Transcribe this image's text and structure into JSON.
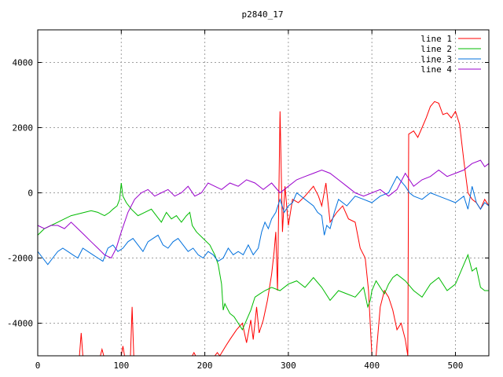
{
  "chart_data": {
    "type": "line",
    "title": "p2840_17",
    "xlabel": "",
    "ylabel": "",
    "xlim": [
      0,
      540
    ],
    "ylim": [
      -5000,
      5000
    ],
    "xticks": [
      0,
      100,
      200,
      300,
      400,
      500
    ],
    "yticks": [
      -4000,
      -2000,
      0,
      2000,
      4000
    ],
    "grid": true,
    "legend_position": "top-right",
    "series": [
      {
        "name": "line 1",
        "color": "#ff0000",
        "x": [
          50,
          52,
          54,
          75,
          77,
          79,
          100,
          102,
          104,
          111,
          113,
          115,
          185,
          187,
          189,
          212,
          215,
          218,
          225,
          230,
          238,
          245,
          250,
          255,
          258,
          262,
          265,
          270,
          275,
          280,
          283,
          285,
          287,
          290,
          293,
          296,
          300,
          305,
          312,
          320,
          330,
          336,
          340,
          345,
          350,
          358,
          365,
          372,
          380,
          386,
          392,
          396,
          400,
          405,
          410,
          415,
          420,
          425,
          430,
          435,
          440,
          443,
          444,
          450,
          455,
          460,
          465,
          470,
          475,
          480,
          485,
          490,
          495,
          500,
          505,
          510,
          515,
          520,
          525,
          530,
          535,
          540
        ],
        "y": [
          -5000,
          -4300,
          -5000,
          -5000,
          -4800,
          -5000,
          -5000,
          -4700,
          -5000,
          -5000,
          -3500,
          -5000,
          -5000,
          -4900,
          -5000,
          -5000,
          -4900,
          -5000,
          -4700,
          -4500,
          -4200,
          -4000,
          -4600,
          -3900,
          -4500,
          -3500,
          -4300,
          -3900,
          -3300,
          -2500,
          -1800,
          -1200,
          -3000,
          2500,
          -1200,
          200,
          -1000,
          -200,
          -300,
          -100,
          200,
          -100,
          -400,
          300,
          -900,
          -600,
          -400,
          -800,
          -900,
          -1700,
          -2000,
          -3000,
          -5000,
          -5000,
          -3500,
          -3000,
          -3200,
          -3600,
          -4200,
          -4000,
          -4500,
          -5000,
          1800,
          1900,
          1700,
          2000,
          2300,
          2650,
          2800,
          2750,
          2400,
          2450,
          2300,
          2500,
          2100,
          1000,
          0,
          -200,
          -300,
          -500,
          -200,
          -400
        ]
      },
      {
        "name": "line 2",
        "color": "#00bb00",
        "x": [
          0,
          8,
          16,
          24,
          32,
          40,
          48,
          56,
          64,
          72,
          80,
          86,
          90,
          95,
          98,
          100,
          102,
          106,
          112,
          120,
          128,
          136,
          142,
          148,
          154,
          160,
          166,
          172,
          178,
          182,
          185,
          190,
          198,
          206,
          212,
          216,
          220,
          222,
          224,
          226,
          230,
          235,
          240,
          245,
          250,
          255,
          260,
          266,
          272,
          280,
          290,
          300,
          310,
          320,
          330,
          340,
          350,
          360,
          370,
          380,
          390,
          395,
          398,
          400,
          405,
          410,
          415,
          420,
          425,
          430,
          440,
          450,
          460,
          470,
          480,
          490,
          500,
          510,
          515,
          520,
          525,
          530,
          535,
          540
        ],
        "y": [
          -1300,
          -1100,
          -1000,
          -900,
          -800,
          -700,
          -650,
          -600,
          -550,
          -600,
          -700,
          -600,
          -500,
          -400,
          -200,
          300,
          -100,
          -300,
          -500,
          -700,
          -600,
          -500,
          -700,
          -900,
          -600,
          -800,
          -700,
          -900,
          -700,
          -600,
          -1000,
          -1200,
          -1400,
          -1600,
          -1900,
          -2200,
          -2800,
          -3600,
          -3400,
          -3500,
          -3700,
          -3800,
          -4000,
          -4200,
          -3900,
          -3600,
          -3200,
          -3100,
          -3000,
          -2900,
          -3000,
          -2800,
          -2700,
          -2900,
          -2600,
          -2900,
          -3300,
          -3000,
          -3100,
          -3200,
          -2900,
          -3500,
          -3300,
          -3000,
          -2700,
          -2900,
          -3100,
          -2800,
          -2600,
          -2500,
          -2700,
          -3000,
          -3200,
          -2800,
          -2600,
          -3000,
          -2800,
          -2200,
          -1900,
          -2400,
          -2300,
          -2900,
          -3000,
          -3000
        ]
      },
      {
        "name": "line 3",
        "color": "#0070dd",
        "x": [
          0,
          6,
          12,
          18,
          24,
          30,
          36,
          42,
          48,
          54,
          60,
          66,
          72,
          78,
          84,
          90,
          96,
          102,
          108,
          114,
          120,
          126,
          132,
          138,
          144,
          150,
          156,
          162,
          168,
          174,
          180,
          186,
          192,
          198,
          204,
          210,
          216,
          222,
          228,
          234,
          240,
          246,
          252,
          258,
          264,
          268,
          272,
          276,
          280,
          285,
          290,
          295,
          300,
          305,
          310,
          320,
          330,
          335,
          340,
          343,
          346,
          350,
          355,
          360,
          370,
          380,
          390,
          400,
          410,
          420,
          430,
          440,
          445,
          450,
          460,
          470,
          480,
          490,
          500,
          510,
          515,
          520,
          525,
          530,
          535,
          540
        ],
        "y": [
          -1800,
          -2000,
          -2200,
          -2000,
          -1800,
          -1700,
          -1800,
          -1900,
          -2000,
          -1700,
          -1800,
          -1900,
          -2000,
          -2100,
          -1700,
          -1600,
          -1800,
          -1700,
          -1500,
          -1400,
          -1600,
          -1800,
          -1500,
          -1400,
          -1300,
          -1600,
          -1700,
          -1500,
          -1400,
          -1600,
          -1800,
          -1700,
          -1900,
          -2000,
          -1800,
          -1900,
          -2100,
          -2000,
          -1700,
          -1900,
          -1800,
          -1900,
          -1600,
          -1900,
          -1700,
          -1200,
          -900,
          -1100,
          -800,
          -600,
          -200,
          -600,
          -400,
          -300,
          0,
          -200,
          -400,
          -600,
          -700,
          -1300,
          -1000,
          -1100,
          -600,
          -200,
          -400,
          -100,
          -200,
          -300,
          -100,
          0,
          500,
          200,
          0,
          -100,
          -200,
          0,
          -100,
          -200,
          -300,
          -100,
          -500,
          200,
          -300,
          -500,
          -300,
          -400
        ]
      },
      {
        "name": "line 4",
        "color": "#9900cc",
        "x": [
          0,
          8,
          16,
          24,
          32,
          40,
          48,
          56,
          64,
          72,
          80,
          88,
          94,
          100,
          108,
          116,
          124,
          132,
          140,
          148,
          156,
          164,
          172,
          180,
          188,
          196,
          204,
          212,
          220,
          230,
          240,
          250,
          260,
          270,
          280,
          290,
          300,
          310,
          320,
          330,
          340,
          350,
          360,
          370,
          380,
          390,
          400,
          410,
          420,
          430,
          440,
          445,
          450,
          460,
          470,
          480,
          490,
          500,
          510,
          520,
          530,
          535,
          540
        ],
        "y": [
          -1000,
          -1100,
          -1000,
          -1000,
          -1100,
          -900,
          -1100,
          -1300,
          -1500,
          -1700,
          -1900,
          -2000,
          -1700,
          -1200,
          -600,
          -200,
          0,
          100,
          -100,
          0,
          100,
          -100,
          0,
          200,
          -100,
          0,
          300,
          200,
          100,
          300,
          200,
          400,
          300,
          100,
          300,
          0,
          200,
          400,
          500,
          600,
          700,
          600,
          400,
          200,
          0,
          -100,
          0,
          100,
          -100,
          100,
          600,
          400,
          200,
          400,
          500,
          700,
          500,
          600,
          700,
          900,
          1000,
          800,
          900
        ]
      }
    ]
  }
}
